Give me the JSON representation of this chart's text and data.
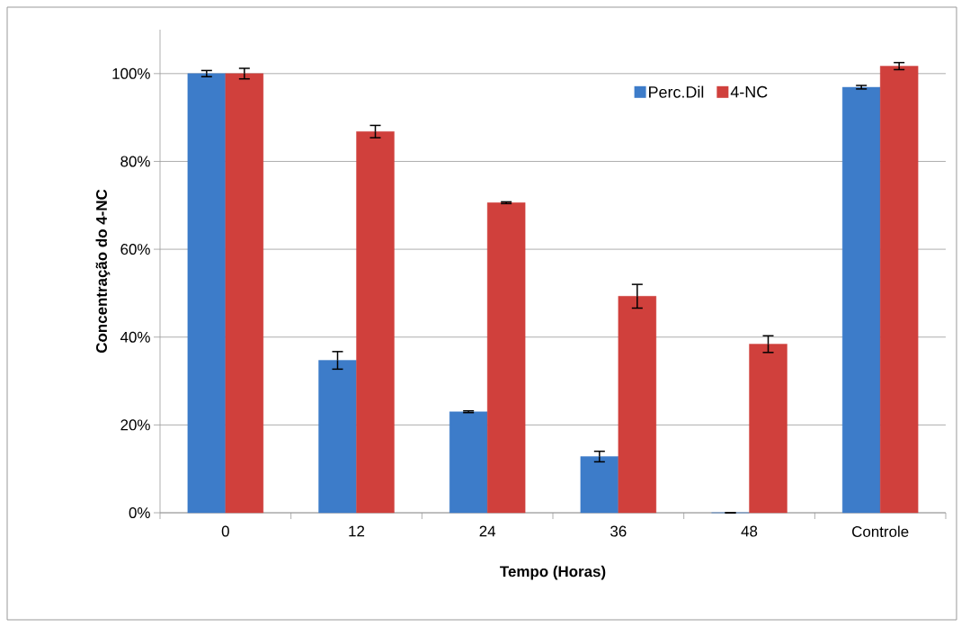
{
  "chart_data": {
    "type": "bar",
    "xlabel": "Tempo (Horas)",
    "ylabel": "Concentração do 4-NC",
    "categories": [
      "0",
      "12",
      "24",
      "36",
      "48",
      "Controle"
    ],
    "series": [
      {
        "name": "Perc.Dil",
        "color": "#3d7cc9",
        "values": [
          100,
          34.7,
          23.0,
          12.8,
          0,
          96.9
        ],
        "errors": [
          0.7,
          2.0,
          0.2,
          1.2,
          null,
          0.4
        ]
      },
      {
        "name": "4-NC",
        "color": "#d0403c",
        "values": [
          100,
          86.8,
          70.6,
          49.3,
          38.4,
          101.7
        ],
        "errors": [
          1.2,
          1.4,
          0.2,
          2.7,
          1.9,
          0.8
        ]
      }
    ],
    "ylim": [
      0,
      110
    ],
    "yticks": [
      {
        "value": 0,
        "label": "0%"
      },
      {
        "value": 20,
        "label": "20%"
      },
      {
        "value": 40,
        "label": "40%"
      },
      {
        "value": 60,
        "label": "60%"
      },
      {
        "value": 80,
        "label": "80%"
      },
      {
        "value": 100,
        "label": "100%"
      }
    ],
    "grid": "y",
    "legend": "top right"
  }
}
